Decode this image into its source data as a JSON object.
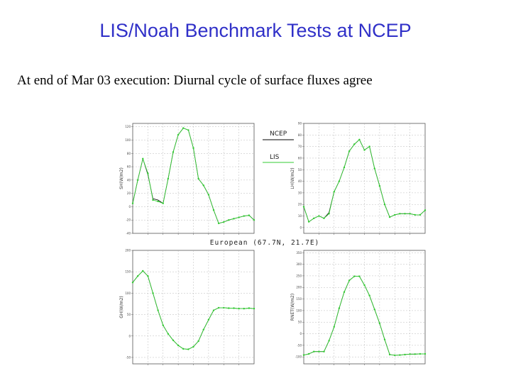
{
  "slide": {
    "title": "LIS/Noah Benchmark Tests at NCEP",
    "subtitle": "At end of Mar 03 execution:  Diurnal cycle of surface fluxes agree"
  },
  "chart_data": [
    {
      "type": "line",
      "ylabel": "SH(W/m2)",
      "ylim": [
        -40,
        125
      ],
      "yticks": [
        -40,
        -20,
        0,
        20,
        40,
        60,
        80,
        100,
        120
      ],
      "ytick_labels": [
        "-40",
        "-20",
        "0",
        "20",
        "40",
        "60",
        "80",
        "100",
        "120"
      ],
      "series": [
        {
          "name": "NCEP",
          "color": "#000000",
          "x": [
            0,
            1,
            2,
            3,
            4,
            5,
            6,
            7,
            8,
            9,
            10,
            11,
            12,
            13,
            14,
            15,
            16,
            17,
            18,
            19,
            20,
            21,
            22,
            23,
            24
          ],
          "y": [
            5,
            40,
            72,
            48,
            12,
            10,
            5,
            42,
            82,
            108,
            118,
            115,
            88,
            42,
            32,
            18,
            -5,
            -25,
            -23,
            -20,
            -18,
            -16,
            -14,
            -13,
            -20
          ]
        },
        {
          "name": "LIS",
          "color": "#33cc33",
          "x": [
            0,
            1,
            2,
            3,
            4,
            5,
            6,
            7,
            8,
            9,
            10,
            11,
            12,
            13,
            14,
            15,
            16,
            17,
            18,
            19,
            20,
            21,
            22,
            23,
            24
          ],
          "y": [
            5,
            40,
            72,
            50,
            10,
            8,
            5,
            42,
            82,
            108,
            118,
            115,
            88,
            42,
            32,
            18,
            -5,
            -25,
            -23,
            -20,
            -18,
            -16,
            -14,
            -13,
            -20
          ]
        }
      ]
    },
    {
      "type": "line",
      "ylabel": "LH(W/m2)",
      "ylim": [
        -5,
        90
      ],
      "yticks": [
        0,
        10,
        20,
        30,
        40,
        50,
        60,
        70,
        80,
        90
      ],
      "ytick_labels": [
        "0",
        "10",
        "20",
        "30",
        "40",
        "50",
        "60",
        "70",
        "80",
        "90"
      ],
      "series": [
        {
          "name": "NCEP",
          "color": "#000000",
          "x": [
            0,
            1,
            2,
            3,
            4,
            5,
            6,
            7,
            8,
            9,
            10,
            11,
            12,
            13,
            14,
            15,
            16,
            17,
            18,
            19,
            20,
            21,
            22,
            23,
            24
          ],
          "y": [
            18,
            5,
            8,
            10,
            8,
            13,
            31,
            40,
            52,
            66,
            72,
            76,
            67,
            70,
            51,
            36,
            20,
            9,
            11,
            12,
            12,
            12,
            11,
            11,
            15
          ]
        },
        {
          "name": "LIS",
          "color": "#33cc33",
          "x": [
            0,
            1,
            2,
            3,
            4,
            5,
            6,
            7,
            8,
            9,
            10,
            11,
            12,
            13,
            14,
            15,
            16,
            17,
            18,
            19,
            20,
            21,
            22,
            23,
            24
          ],
          "y": [
            18,
            5,
            8,
            10,
            8,
            12,
            31,
            40,
            52,
            66,
            72,
            76,
            67,
            70,
            51,
            36,
            20,
            9,
            11,
            12,
            12,
            12,
            11,
            11,
            15
          ]
        }
      ]
    },
    {
      "type": "line",
      "ylabel": "GH(W/m2)",
      "ylim": [
        -65,
        200
      ],
      "yticks": [
        -50,
        0,
        50,
        100,
        150,
        200
      ],
      "ytick_labels": [
        "-50",
        "0",
        "50",
        "100",
        "150",
        "200"
      ],
      "series": [
        {
          "name": "NCEP",
          "color": "#000000",
          "x": [
            0,
            1,
            2,
            3,
            4,
            5,
            6,
            7,
            8,
            9,
            10,
            11,
            12,
            13,
            14,
            15,
            16,
            17,
            18,
            19,
            20,
            21,
            22,
            23,
            24
          ],
          "y": [
            125,
            140,
            152,
            140,
            100,
            60,
            25,
            5,
            -10,
            -22,
            -30,
            -31,
            -25,
            -12,
            15,
            38,
            60,
            66,
            66,
            65,
            65,
            64,
            64,
            65,
            64
          ]
        },
        {
          "name": "LIS",
          "color": "#33cc33",
          "x": [
            0,
            1,
            2,
            3,
            4,
            5,
            6,
            7,
            8,
            9,
            10,
            11,
            12,
            13,
            14,
            15,
            16,
            17,
            18,
            19,
            20,
            21,
            22,
            23,
            24
          ],
          "y": [
            125,
            140,
            152,
            140,
            100,
            60,
            25,
            5,
            -10,
            -22,
            -30,
            -31,
            -25,
            -12,
            15,
            38,
            60,
            66,
            66,
            65,
            65,
            64,
            64,
            65,
            64
          ]
        }
      ]
    },
    {
      "type": "line",
      "ylabel": "RNET(W/m2)",
      "ylim": [
        -130,
        360
      ],
      "yticks": [
        -100,
        -50,
        0,
        50,
        100,
        150,
        200,
        250,
        300,
        350
      ],
      "ytick_labels": [
        "-100",
        "-50",
        "0",
        "50",
        "100",
        "150",
        "200",
        "250",
        "300",
        "350"
      ],
      "series": [
        {
          "name": "NCEP",
          "color": "#000000",
          "x": [
            0,
            1,
            2,
            3,
            4,
            5,
            6,
            7,
            8,
            9,
            10,
            11,
            12,
            13,
            14,
            15,
            16,
            17,
            18,
            19,
            20,
            21,
            22,
            23,
            24
          ],
          "y": [
            -92,
            -87,
            -77,
            -77,
            -77,
            -30,
            30,
            110,
            180,
            230,
            248,
            248,
            210,
            165,
            105,
            45,
            -25,
            -90,
            -93,
            -92,
            -90,
            -88,
            -88,
            -87,
            -87
          ]
        },
        {
          "name": "LIS",
          "color": "#33cc33",
          "x": [
            0,
            1,
            2,
            3,
            4,
            5,
            6,
            7,
            8,
            9,
            10,
            11,
            12,
            13,
            14,
            15,
            16,
            17,
            18,
            19,
            20,
            21,
            22,
            23,
            24
          ],
          "y": [
            -92,
            -87,
            -77,
            -77,
            -77,
            -30,
            30,
            110,
            180,
            230,
            248,
            248,
            210,
            165,
            105,
            45,
            -25,
            -90,
            -93,
            -92,
            -90,
            -88,
            -88,
            -87,
            -87
          ]
        }
      ]
    }
  ],
  "legend": {
    "items": [
      {
        "name": "NCEP",
        "color": "#000000"
      },
      {
        "name": "LIS",
        "color": "#33cc33"
      }
    ]
  },
  "site_label": "European (67.7N, 21.7E)"
}
